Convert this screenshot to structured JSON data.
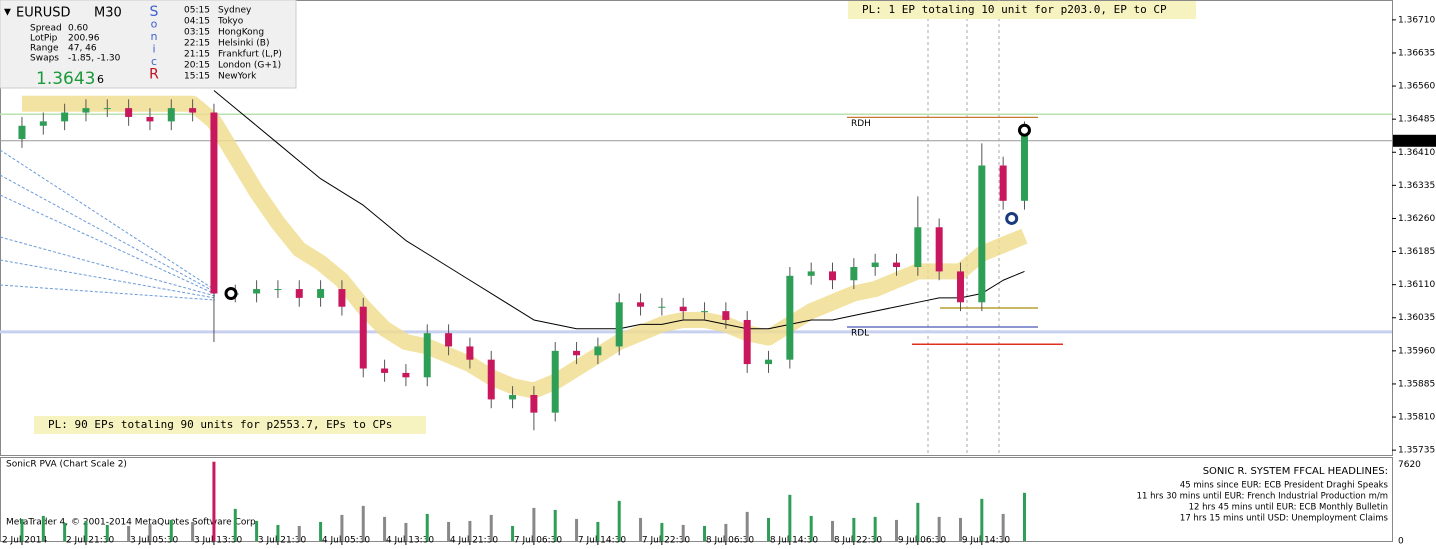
{
  "chart_data": [
    {
      "type": "candlestick",
      "symbol": "EURUSD",
      "timeframe": "M30",
      "xlim": [
        -1.03,
        64.23
      ],
      "ylim": [
        1.35724,
        1.36755
      ],
      "yticks": [
        {
          "value": 1.3671,
          "label": "1.36710"
        },
        {
          "value": 1.36635,
          "label": "1.36635"
        },
        {
          "value": 1.3656,
          "label": "1.36560"
        },
        {
          "value": 1.36485,
          "label": "1.36485"
        },
        {
          "value": 1.3641,
          "label": "1.36410"
        },
        {
          "value": 1.36335,
          "label": "1.36335"
        },
        {
          "value": 1.3626,
          "label": "1.36260"
        },
        {
          "value": 1.36185,
          "label": "1.36185"
        },
        {
          "value": 1.3611,
          "label": "1.36110"
        },
        {
          "value": 1.36035,
          "label": "1.36035"
        },
        {
          "value": 1.3596,
          "label": "1.35960"
        },
        {
          "value": 1.35885,
          "label": "1.35885"
        },
        {
          "value": 1.3581,
          "label": "1.35810"
        },
        {
          "value": 1.35735,
          "label": "1.35735"
        }
      ],
      "xticks": [
        {
          "value": 0,
          "label": "2 Jul 2014"
        },
        {
          "value": 3,
          "label": "2 Jul 21:30"
        },
        {
          "value": 6,
          "label": "3 Jul 05:30"
        },
        {
          "value": 9,
          "label": "3 Jul 13:30"
        },
        {
          "value": 12,
          "label": "3 Jul 21:30"
        },
        {
          "value": 15,
          "label": "4 Jul 05:30"
        },
        {
          "value": 18,
          "label": "4 Jul 13:30"
        },
        {
          "value": 21,
          "label": "4 Jul 21:30"
        },
        {
          "value": 24,
          "label": "7 Jul 06:30"
        },
        {
          "value": 27,
          "label": "7 Jul 14:30"
        },
        {
          "value": 30,
          "label": "7 Jul 22:30"
        },
        {
          "value": 33,
          "label": "8 Jul 06:30"
        },
        {
          "value": 36,
          "label": "8 Jul 14:30"
        },
        {
          "value": 39,
          "label": "8 Jul 22:30"
        },
        {
          "value": 42,
          "label": "9 Jul 06:30"
        },
        {
          "value": 45,
          "label": "9 Jul 14:30"
        }
      ],
      "up_color": "#2e9e57",
      "down_color": "#c8175d",
      "open": [
        1.3644,
        1.3647,
        1.3648,
        1.365,
        1.3651,
        1.3651,
        1.3649,
        1.3648,
        1.3651,
        1.365,
        1.3609,
        1.3609,
        1.361,
        1.361,
        1.3608,
        1.361,
        1.3606,
        1.3592,
        1.3591,
        1.359,
        1.36,
        1.3597,
        1.3594,
        1.3585,
        1.3586,
        1.3582,
        1.3596,
        1.3595,
        1.3597,
        1.3607,
        1.3606,
        1.3606,
        1.3605,
        1.3605,
        1.3603,
        1.3593,
        1.3594,
        1.3613,
        1.3614,
        1.3612,
        1.3615,
        1.3616,
        1.3615,
        1.3624,
        1.3614,
        1.3607,
        1.3638,
        1.363
      ],
      "high": [
        1.3649,
        1.365,
        1.3652,
        1.3653,
        1.3653,
        1.3653,
        1.3651,
        1.3653,
        1.3653,
        1.3652,
        1.3611,
        1.3612,
        1.3612,
        1.3612,
        1.3612,
        1.3612,
        1.3608,
        1.3594,
        1.3593,
        1.3602,
        1.3602,
        1.3599,
        1.3596,
        1.3588,
        1.3588,
        1.3598,
        1.3598,
        1.3599,
        1.3609,
        1.3609,
        1.3608,
        1.3608,
        1.3607,
        1.3607,
        1.3605,
        1.3596,
        1.3615,
        1.3616,
        1.3616,
        1.3617,
        1.3618,
        1.3618,
        1.3631,
        1.3626,
        1.3616,
        1.3643,
        1.364,
        1.3648
      ],
      "low": [
        1.3642,
        1.3645,
        1.3646,
        1.3648,
        1.3649,
        1.3647,
        1.3646,
        1.3646,
        1.3648,
        1.3598,
        1.3607,
        1.3607,
        1.3608,
        1.3606,
        1.3606,
        1.3604,
        1.359,
        1.3589,
        1.3588,
        1.3588,
        1.3595,
        1.3592,
        1.3583,
        1.3583,
        1.3578,
        1.358,
        1.3593,
        1.3593,
        1.3595,
        1.3604,
        1.3604,
        1.3603,
        1.3603,
        1.3601,
        1.3591,
        1.3591,
        1.3592,
        1.3611,
        1.361,
        1.361,
        1.3613,
        1.3613,
        1.3613,
        1.3612,
        1.3605,
        1.3605,
        1.3628,
        1.3628
      ],
      "close": [
        1.3647,
        1.3648,
        1.365,
        1.3651,
        1.3651,
        1.3649,
        1.3648,
        1.3651,
        1.365,
        1.3609,
        1.3609,
        1.361,
        1.361,
        1.3608,
        1.361,
        1.3606,
        1.3592,
        1.3591,
        1.359,
        1.36,
        1.3597,
        1.3594,
        1.3585,
        1.3586,
        1.3582,
        1.3596,
        1.3595,
        1.3597,
        1.3607,
        1.3606,
        1.3606,
        1.3605,
        1.3605,
        1.3603,
        1.3593,
        1.3594,
        1.3613,
        1.3614,
        1.3612,
        1.3615,
        1.3616,
        1.3615,
        1.3624,
        1.3614,
        1.3607,
        1.3638,
        1.363,
        1.3645
      ],
      "lines": [
        {
          "color": "#f0dc8c",
          "width": 16,
          "values": [
            1.3652,
            1.3652,
            1.3652,
            1.3652,
            1.3652,
            1.3652,
            1.3652,
            1.3652,
            1.3652,
            1.3648,
            1.364,
            1.3632,
            1.3625,
            1.3619,
            1.3616,
            1.3612,
            1.3606,
            1.3601,
            1.3598,
            1.3597,
            1.3595,
            1.3593,
            1.359,
            1.3588,
            1.3587,
            1.3589,
            1.3592,
            1.3595,
            1.3598,
            1.36,
            1.3602,
            1.3603,
            1.3603,
            1.3602,
            1.36,
            1.3599,
            1.3602,
            1.3605,
            1.3607,
            1.3609,
            1.361,
            1.3612,
            1.3614,
            1.3614,
            1.3614,
            1.3618,
            1.362,
            1.3622
          ]
        },
        {
          "color": "#000000",
          "width": 1,
          "values": [
            null,
            null,
            null,
            null,
            null,
            null,
            null,
            null,
            null,
            1.3655,
            1.3651,
            1.3647,
            1.3643,
            1.3639,
            1.3635,
            1.3632,
            1.3629,
            1.3625,
            1.3621,
            1.3618,
            1.3615,
            1.3612,
            1.3609,
            1.3606,
            1.3603,
            1.3602,
            1.3601,
            1.3601,
            1.3601,
            1.3602,
            1.3602,
            1.3603,
            1.3603,
            1.3602,
            1.3601,
            1.3601,
            1.3602,
            1.3603,
            1.3603,
            1.3604,
            1.3605,
            1.3606,
            1.3607,
            1.3608,
            1.3608,
            1.3609,
            1.3612,
            1.3614
          ]
        }
      ],
      "levels": [
        {
          "label": "RDH",
          "value": 1.36489,
          "color": "#c8782e"
        },
        {
          "label": "RDL",
          "value": 1.36014,
          "color": "#4a58b8"
        }
      ],
      "plain_levels": [
        {
          "value": 1.35975,
          "color": "#e03020"
        },
        {
          "value": 1.36057,
          "color": "#b8a030"
        },
        {
          "value": 1.36496,
          "color": "#b8e0b0"
        },
        {
          "value": 1.36003,
          "color": "#c8d0f0"
        }
      ],
      "last_price": {
        "value": 1.36436,
        "label": "1.36436"
      },
      "markers": [
        {
          "x": 9.8,
          "value": 1.3609,
          "color": "#000000"
        },
        {
          "x": 46.4,
          "value": 1.3626,
          "color": "#1a3a80"
        },
        {
          "x": 47,
          "value": 1.3646,
          "color": "#000000"
        }
      ],
      "annotations": [
        "PL: 1 EP totaling 10 unit for p203.0, EP to CP",
        "PL: 90 EPs totaling 90 units for p2553.7, EPs to CPs"
      ]
    },
    {
      "type": "bar",
      "title": "SonicR PVA  (Chart Scale 2)",
      "ylim": [
        0,
        8370
      ],
      "yticks": [
        0,
        7620
      ],
      "values": [
        2200,
        2500,
        1800,
        2000,
        1600,
        1500,
        1700,
        2100,
        1900,
        7900,
        3200,
        2000,
        1600,
        1500,
        1900,
        2600,
        3500,
        2400,
        1800,
        2700,
        1900,
        2000,
        2600,
        1500,
        3300,
        3100,
        2200,
        1900,
        4000,
        2300,
        1800,
        1600,
        1500,
        1700,
        2900,
        2300,
        4600,
        2500,
        2000,
        2300,
        2400,
        2100,
        3800,
        2400,
        2300,
        4200,
        2700,
        4800
      ]
    }
  ],
  "info_panel": {
    "symbol": "EURUSD",
    "timeframe": "M30",
    "rows": [
      [
        "Spread",
        "0.60"
      ],
      [
        "LotPip",
        "200.96"
      ],
      [
        "Range",
        "47, 46"
      ],
      [
        "Swaps",
        "-1.85, -1.30"
      ]
    ],
    "price": "1.3643",
    "price_digit": "6",
    "letters": [
      "S",
      "o",
      "n",
      "i",
      "c",
      "R"
    ],
    "sessions": [
      [
        "05:15",
        "Sydney"
      ],
      [
        "04:15",
        "Tokyo"
      ],
      [
        "03:15",
        "HongKong"
      ],
      [
        "22:15",
        "Helsinki  (B)"
      ],
      [
        "21:15",
        "Frankfurt  (L,P)"
      ],
      [
        "20:15",
        "London  (G+1)"
      ],
      [
        "15:15",
        "NewYork"
      ]
    ]
  },
  "headlines": {
    "title": "SONIC R. SYSTEM  FFCAL HEADLINES:",
    "items": [
      {
        "text": "45 mins since EUR: ECB President Draghi Speaks",
        "color": "#d02020"
      },
      {
        "text": "11 hrs 30 mins until EUR: French Industrial Production m/m",
        "color": "#1030c0"
      },
      {
        "text": "12 hrs 45 mins until EUR: ECB Monthly Bulletin",
        "color": "#1030c0"
      },
      {
        "text": "17 hrs 15 mins until USD: Unemployment Claims",
        "color": "#d02020"
      }
    ]
  },
  "copyright": "MetaTrader 4, © 2001-2014 MetaQuotes Software Corp."
}
